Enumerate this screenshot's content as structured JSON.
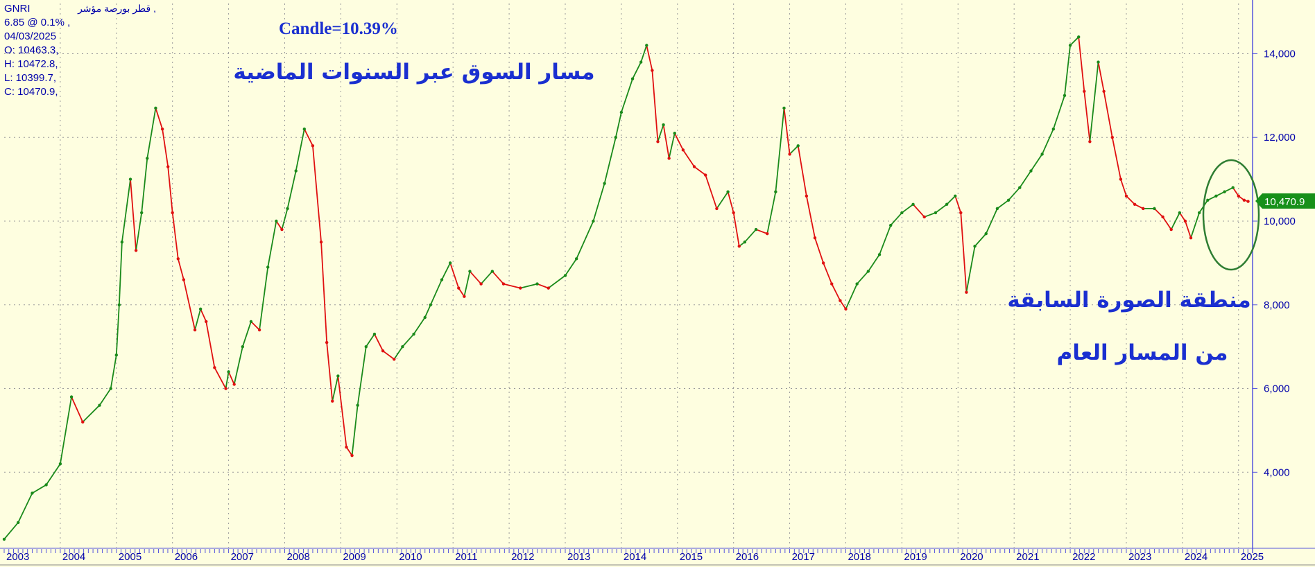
{
  "info": {
    "ticker": "GNRI",
    "name": "قطر بورصة مؤشر ,",
    "change": "6.85 @ 0.1%  ,",
    "date": "04/03/2025",
    "open": "O: 10463.3,",
    "high": "H: 10472.8,",
    "low": "L: 10399.7,",
    "close": "C: 10470.9,"
  },
  "annotations": {
    "candle": "Candle=10.39%",
    "title_ar": "مسار السوق عبر السنوات الماضية",
    "region_line1": "منطقة الصورة السابقة",
    "region_line2": "من المسار العام"
  },
  "last_price_label": "10,470.9",
  "colors": {
    "background": "#fefee0",
    "up": "#1a8a1a",
    "down": "#e01010",
    "axis": "#5555dd",
    "text": "#0000aa",
    "annotation": "#1a2fd0",
    "ellipse": "#2e7d32",
    "last_price_bg": "#17901a"
  },
  "chart_data": {
    "type": "line",
    "title": "",
    "xlabel": "",
    "ylabel": "",
    "xlim": [
      2003.0,
      2025.25
    ],
    "ylim": [
      2200,
      15200
    ],
    "y_ticks": [
      4000,
      6000,
      8000,
      10000,
      12000,
      14000
    ],
    "y_tick_labels": [
      "4,000",
      "6,000",
      "8,000",
      "10,000",
      "12,000",
      "14,000"
    ],
    "x_tick_labels": [
      "2003",
      "2004",
      "2005",
      "2006",
      "2007",
      "2008",
      "2009",
      "2010",
      "2011",
      "2012",
      "2013",
      "2014",
      "2015",
      "2016",
      "2017",
      "2018",
      "2019",
      "2020",
      "2021",
      "2022",
      "2023",
      "2024",
      "2025"
    ],
    "grid": true,
    "axis_position": "right",
    "series": [
      {
        "x": [
          2003.0,
          2003.25,
          2003.5,
          2003.75,
          2004.0,
          2004.2,
          2004.4,
          2004.7,
          2004.9,
          2005.0,
          2005.05,
          2005.1,
          2005.25,
          2005.35,
          2005.45,
          2005.55,
          2005.7,
          2005.82,
          2005.92,
          2006.0,
          2006.1,
          2006.2,
          2006.4,
          2006.5,
          2006.6,
          2006.75,
          2006.95,
          2007.0,
          2007.1,
          2007.25,
          2007.4,
          2007.55,
          2007.7,
          2007.85,
          2007.95,
          2008.05,
          2008.2,
          2008.35,
          2008.5,
          2008.65,
          2008.75,
          2008.85,
          2008.95,
          2009.1,
          2009.2,
          2009.3,
          2009.45,
          2009.6,
          2009.75,
          2009.95,
          2010.1,
          2010.3,
          2010.5,
          2010.6,
          2010.8,
          2010.95,
          2011.1,
          2011.2,
          2011.3,
          2011.5,
          2011.7,
          2011.9,
          2012.2,
          2012.5,
          2012.7,
          2013.0,
          2013.2,
          2013.5,
          2013.7,
          2013.9,
          2014.0,
          2014.2,
          2014.35,
          2014.45,
          2014.55,
          2014.65,
          2014.75,
          2014.85,
          2014.95,
          2015.1,
          2015.3,
          2015.5,
          2015.7,
          2015.9,
          2016.0,
          2016.1,
          2016.2,
          2016.4,
          2016.6,
          2016.75,
          2016.9,
          2017.0,
          2017.15,
          2017.3,
          2017.45,
          2017.6,
          2017.75,
          2017.9,
          2018.0,
          2018.2,
          2018.4,
          2018.6,
          2018.8,
          2019.0,
          2019.2,
          2019.4,
          2019.6,
          2019.8,
          2019.95,
          2020.05,
          2020.15,
          2020.3,
          2020.5,
          2020.7,
          2020.9,
          2021.1,
          2021.3,
          2021.5,
          2021.7,
          2021.9,
          2022.0,
          2022.15,
          2022.25,
          2022.35,
          2022.5,
          2022.6,
          2022.75,
          2022.9,
          2023.0,
          2023.15,
          2023.3,
          2023.5,
          2023.65,
          2023.8,
          2023.95,
          2024.05,
          2024.15,
          2024.3,
          2024.45,
          2024.6,
          2024.75,
          2024.9,
          2025.0,
          2025.1,
          2025.17
        ],
        "y": [
          2400,
          2800,
          3500,
          3700,
          4200,
          5800,
          5200,
          5600,
          6000,
          6800,
          8000,
          9500,
          11000,
          9300,
          10200,
          11500,
          12700,
          12200,
          11300,
          10200,
          9100,
          8600,
          7400,
          7900,
          7600,
          6500,
          6000,
          6400,
          6100,
          7000,
          7600,
          7400,
          8900,
          10000,
          9800,
          10300,
          11200,
          12200,
          11800,
          9500,
          7100,
          5700,
          6300,
          4600,
          4400,
          5600,
          7000,
          7300,
          6900,
          6700,
          7000,
          7300,
          7700,
          8000,
          8600,
          9000,
          8400,
          8200,
          8800,
          8500,
          8800,
          8500,
          8400,
          8500,
          8400,
          8700,
          9100,
          10000,
          10900,
          12000,
          12600,
          13400,
          13800,
          14200,
          13600,
          11900,
          12300,
          11500,
          12100,
          11700,
          11300,
          11100,
          10300,
          10700,
          10200,
          9400,
          9500,
          9800,
          9700,
          10700,
          12700,
          11600,
          11800,
          10600,
          9600,
          9000,
          8500,
          8100,
          7900,
          8500,
          8800,
          9200,
          9900,
          10200,
          10400,
          10100,
          10200,
          10400,
          10600,
          10200,
          8300,
          9400,
          9700,
          10300,
          10500,
          10800,
          11200,
          11600,
          12200,
          13000,
          14200,
          14400,
          13100,
          11900,
          13800,
          13100,
          12000,
          11000,
          10600,
          10400,
          10300,
          10300,
          10100,
          9800,
          10200,
          10000,
          9600,
          10200,
          10500,
          10600,
          10700,
          10800,
          10600,
          10500,
          10470.9
        ]
      }
    ]
  }
}
